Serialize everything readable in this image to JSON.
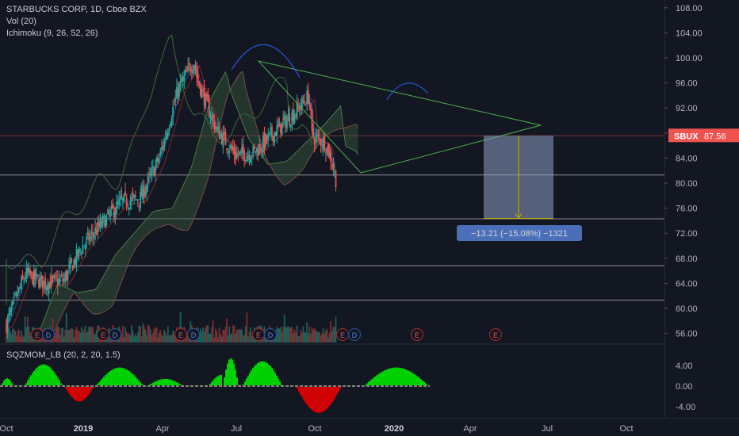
{
  "header": {
    "symbol_line": "STARBUCKS CORP, 1D, Cboe BZX",
    "indicator_vol": "Vol (20)",
    "indicator_ichimoku": "Ichimoku (9, 26, 52, 26)",
    "indicator_sqz": "SQZMOM_LB (20, 2, 20, 1.5)"
  },
  "price_axis": {
    "ticks": [
      "108.00",
      "104.00",
      "100.00",
      "96.00",
      "92.00",
      "88.00",
      "84.00",
      "80.00",
      "76.00",
      "72.00",
      "68.00",
      "64.00",
      "60.00",
      "56.00"
    ],
    "last_price_symbol": "SBUX",
    "last_price": "87.56"
  },
  "momentum_axis": {
    "ticks": [
      "4.00",
      "0.00",
      "-4.00"
    ]
  },
  "time_axis": {
    "labels": [
      {
        "text": "Oct",
        "bold": false
      },
      {
        "text": "2019",
        "bold": true
      },
      {
        "text": "Apr",
        "bold": false
      },
      {
        "text": "Jul",
        "bold": false
      },
      {
        "text": "Oct",
        "bold": false
      },
      {
        "text": "2020",
        "bold": true
      },
      {
        "text": "Apr",
        "bold": false
      },
      {
        "text": "Jul",
        "bold": false
      },
      {
        "text": "Oct",
        "bold": false
      }
    ]
  },
  "measurement": {
    "label": "−13.21 (−15.08%) −1321",
    "from": 87.56,
    "to": 74.35
  },
  "horizontal_levels": [
    87.56,
    81.3,
    74.3,
    66.8,
    61.3
  ],
  "earnings_marker_label": "E",
  "dividend_marker_label": "D",
  "colors": {
    "background": "#131722",
    "up": "#26a69a",
    "down": "#ef5350",
    "triangle": "#4caf50",
    "arc": "#2962ff",
    "measure_box": "#8c9fc3",
    "measure_label_bg": "#4a6fb8",
    "arrow": "#c8b400",
    "sqz_pos": "#00e600",
    "sqz_neg": "#e60000",
    "price_badge": "#ef5350"
  },
  "chart_data": {
    "type": "candlestick",
    "title": "STARBUCKS CORP, 1D, Cboe BZX",
    "ylim": [
      54,
      110
    ],
    "period": "2018-10 to 2020-11",
    "overlays": [
      "Ichimoku (9, 26, 52, 26)",
      "Vol (20)",
      "SQZMOM_LB (20, 2, 20, 1.5)"
    ],
    "close_points": [
      {
        "date": "2018-10",
        "close": 57.5
      },
      {
        "date": "2018-11",
        "close": 65.5
      },
      {
        "date": "2018-12",
        "close": 64.0
      },
      {
        "date": "2019-01",
        "close": 64.5
      },
      {
        "date": "2019-02",
        "close": 70.0
      },
      {
        "date": "2019-03",
        "close": 73.5
      },
      {
        "date": "2019-04",
        "close": 77.0
      },
      {
        "date": "2019-05",
        "close": 77.5
      },
      {
        "date": "2019-06",
        "close": 84.0
      },
      {
        "date": "2019-07",
        "close": 95.0
      },
      {
        "date": "2019-07-26",
        "close": 99.5
      },
      {
        "date": "2019-08",
        "close": 96.5
      },
      {
        "date": "2019-09",
        "close": 88.5
      },
      {
        "date": "2019-10",
        "close": 84.5
      },
      {
        "date": "2019-11",
        "close": 85.0
      },
      {
        "date": "2019-12",
        "close": 88.0
      },
      {
        "date": "2020-01",
        "close": 91.0
      },
      {
        "date": "2020-01-27",
        "close": 94.0
      },
      {
        "date": "2020-02",
        "close": 87.5
      },
      {
        "date": "2020-02-21",
        "close": 86.5
      },
      {
        "date": "2020-03-01",
        "close": 84.0
      },
      {
        "date": "2020-03-10",
        "close": 80.0
      }
    ],
    "momentum_range": [
      -5.5,
      5.5
    ]
  }
}
